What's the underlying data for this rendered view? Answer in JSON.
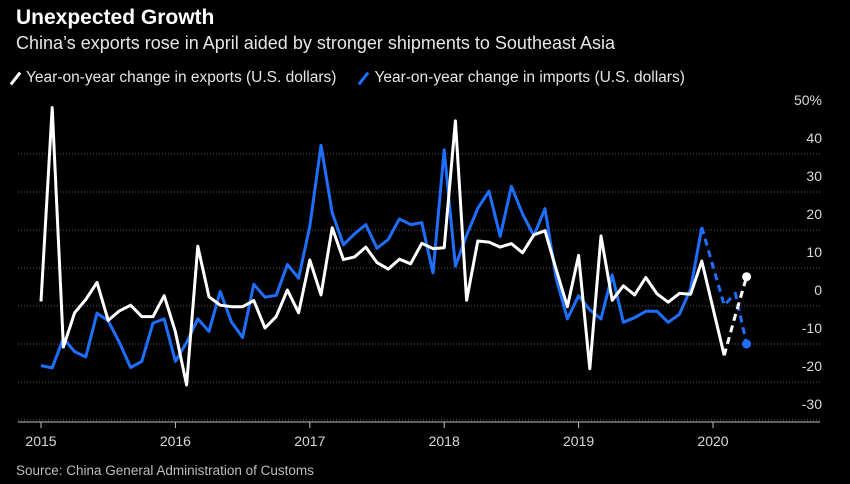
{
  "chart_data": {
    "type": "line",
    "title": "Unexpected Growth",
    "subtitle": "China’s exports rose in April aided by stronger shipments to Southeast Asia",
    "source": "Source: China General Administration of Customs",
    "legend_position": "top-left",
    "grid": true,
    "x_ticks": [
      "2015",
      "2016",
      "2017",
      "2018",
      "2019",
      "2020"
    ],
    "y_ticks": [
      "50%",
      "40",
      "30",
      "20",
      "10",
      "0",
      "-10",
      "-20",
      "-30"
    ],
    "ylim": [
      -30,
      50
    ],
    "xlim": [
      "2015-01",
      "2020-09"
    ],
    "series": [
      {
        "name": "Year-on-year change in exports (U.S. dollars)",
        "color": "#ffffff",
        "projected_from": "2020-02",
        "points": [
          [
            "2015-01",
            -3
          ],
          [
            "2015-02",
            48
          ],
          [
            "2015-03",
            -15
          ],
          [
            "2015-04",
            -6
          ],
          [
            "2015-05",
            -2.5
          ],
          [
            "2015-06",
            2
          ],
          [
            "2015-07",
            -8
          ],
          [
            "2015-08",
            -5.5
          ],
          [
            "2015-09",
            -4
          ],
          [
            "2015-10",
            -7
          ],
          [
            "2015-11",
            -7
          ],
          [
            "2015-12",
            -1.5
          ],
          [
            "2016-01",
            -11
          ],
          [
            "2016-02",
            -25
          ],
          [
            "2016-03",
            11.5
          ],
          [
            "2016-04",
            -1.8
          ],
          [
            "2016-05",
            -4
          ],
          [
            "2016-06",
            -4.4
          ],
          [
            "2016-07",
            -4.4
          ],
          [
            "2016-08",
            -2.8
          ],
          [
            "2016-09",
            -10
          ],
          [
            "2016-10",
            -7
          ],
          [
            "2016-11",
            0
          ],
          [
            "2016-12",
            -6
          ],
          [
            "2017-01",
            7.9
          ],
          [
            "2017-02",
            -1.3
          ],
          [
            "2017-03",
            16.4
          ],
          [
            "2017-04",
            8
          ],
          [
            "2017-05",
            8.7
          ],
          [
            "2017-06",
            11.3
          ],
          [
            "2017-07",
            7.2
          ],
          [
            "2017-08",
            5.5
          ],
          [
            "2017-09",
            8.1
          ],
          [
            "2017-10",
            6.9
          ],
          [
            "2017-11",
            12.3
          ],
          [
            "2017-12",
            10.9
          ],
          [
            "2018-01",
            11.1
          ],
          [
            "2018-02",
            44.5
          ],
          [
            "2018-03",
            -2.7
          ],
          [
            "2018-04",
            12.9
          ],
          [
            "2018-05",
            12.6
          ],
          [
            "2018-06",
            11.3
          ],
          [
            "2018-07",
            12.2
          ],
          [
            "2018-08",
            9.8
          ],
          [
            "2018-09",
            14.5
          ],
          [
            "2018-10",
            15.6
          ],
          [
            "2018-11",
            5.4
          ],
          [
            "2018-12",
            -4.4
          ],
          [
            "2019-01",
            9.1
          ],
          [
            "2019-02",
            -20.7
          ],
          [
            "2019-03",
            14.2
          ],
          [
            "2019-04",
            -2.7
          ],
          [
            "2019-05",
            1.1
          ],
          [
            "2019-06",
            -1.3
          ],
          [
            "2019-07",
            3.3
          ],
          [
            "2019-08",
            -1
          ],
          [
            "2019-09",
            -3.2
          ],
          [
            "2019-10",
            -0.9
          ],
          [
            "2019-11",
            -1.1
          ],
          [
            "2019-12",
            7.6
          ],
          [
            "2020-02",
            -17.2
          ],
          [
            "2020-03",
            -6.6
          ],
          [
            "2020-04",
            3.5
          ]
        ]
      },
      {
        "name": "Year-on-year change in imports (U.S. dollars)",
        "color": "#1f6fff",
        "projected_from": "2019-12",
        "points": [
          [
            "2015-01",
            -19.9
          ],
          [
            "2015-02",
            -20.5
          ],
          [
            "2015-03",
            -12.7
          ],
          [
            "2015-04",
            -16.2
          ],
          [
            "2015-05",
            -17.6
          ],
          [
            "2015-06",
            -6.1
          ],
          [
            "2015-07",
            -8.1
          ],
          [
            "2015-08",
            -13.8
          ],
          [
            "2015-09",
            -20.4
          ],
          [
            "2015-10",
            -18.8
          ],
          [
            "2015-11",
            -8.7
          ],
          [
            "2015-12",
            -7.6
          ],
          [
            "2016-01",
            -18.8
          ],
          [
            "2016-02",
            -13.8
          ],
          [
            "2016-03",
            -7.6
          ],
          [
            "2016-04",
            -10.9
          ],
          [
            "2016-05",
            -0.4
          ],
          [
            "2016-06",
            -8.4
          ],
          [
            "2016-07",
            -12.5
          ],
          [
            "2016-08",
            1.5
          ],
          [
            "2016-09",
            -1.9
          ],
          [
            "2016-10",
            -1.4
          ],
          [
            "2016-11",
            6.7
          ],
          [
            "2016-12",
            3.1
          ],
          [
            "2017-01",
            16.7
          ],
          [
            "2017-02",
            38.1
          ],
          [
            "2017-03",
            20.3
          ],
          [
            "2017-04",
            11.9
          ],
          [
            "2017-05",
            14.8
          ],
          [
            "2017-06",
            17.2
          ],
          [
            "2017-07",
            11
          ],
          [
            "2017-08",
            13.3
          ],
          [
            "2017-09",
            18.7
          ],
          [
            "2017-10",
            17.2
          ],
          [
            "2017-11",
            17.7
          ],
          [
            "2017-12",
            4.5
          ],
          [
            "2018-01",
            36.9
          ],
          [
            "2018-02",
            6.3
          ],
          [
            "2018-03",
            14.4
          ],
          [
            "2018-04",
            21.5
          ],
          [
            "2018-05",
            26
          ],
          [
            "2018-06",
            14.1
          ],
          [
            "2018-07",
            27.3
          ],
          [
            "2018-08",
            20
          ],
          [
            "2018-09",
            14.3
          ],
          [
            "2018-10",
            21.4
          ],
          [
            "2018-11",
            3
          ],
          [
            "2018-12",
            -7.6
          ],
          [
            "2019-01",
            -1.5
          ],
          [
            "2019-02",
            -5.2
          ],
          [
            "2019-03",
            -7.6
          ],
          [
            "2019-04",
            4
          ],
          [
            "2019-05",
            -8.5
          ],
          [
            "2019-06",
            -7.3
          ],
          [
            "2019-07",
            -5.6
          ],
          [
            "2019-08",
            -5.6
          ],
          [
            "2019-09",
            -8.5
          ],
          [
            "2019-10",
            -6.4
          ],
          [
            "2019-11",
            0.3
          ],
          [
            "2019-12",
            16.5
          ],
          [
            "2020-02",
            -4
          ],
          [
            "2020-03",
            -0.9
          ],
          [
            "2020-04",
            -14.2
          ]
        ]
      }
    ]
  }
}
